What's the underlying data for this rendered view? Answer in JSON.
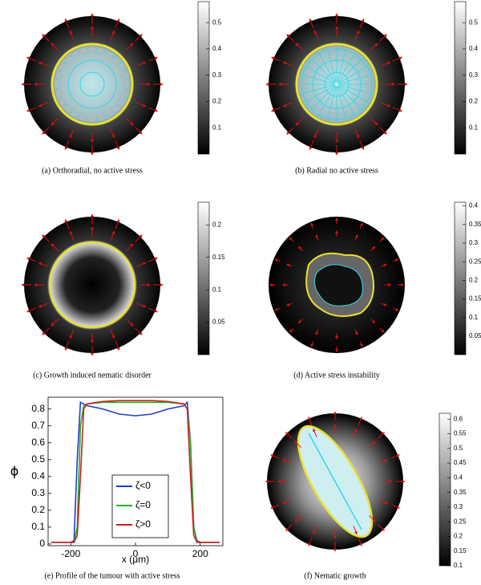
{
  "panels": [
    {
      "caption": "(a) Orthoradial, no active stress",
      "clim": [
        0,
        0.58
      ],
      "ticks": [
        0.1,
        0.2,
        0.3,
        0.4,
        0.5
      ]
    },
    {
      "caption": "(b) Radial no active stress",
      "clim": [
        0,
        0.58
      ],
      "ticks": [
        0.1,
        0.2,
        0.3,
        0.4,
        0.5
      ]
    },
    {
      "caption": "(c) Growth induced nematic disorder",
      "clim": [
        0,
        0.235
      ],
      "ticks": [
        0.05,
        0.1,
        0.15,
        0.2
      ]
    },
    {
      "caption": "(d) Active stress instability",
      "clim": [
        0,
        0.41
      ],
      "ticks": [
        0.05,
        0.1,
        0.15,
        0.2,
        0.25,
        0.3,
        0.35,
        0.4
      ]
    },
    {
      "caption": "(f) Nematic growth",
      "clim": [
        0.1,
        0.62
      ],
      "ticks": [
        0.1,
        0.15,
        0.2,
        0.25,
        0.3,
        0.35,
        0.4,
        0.45,
        0.5,
        0.55,
        0.6
      ]
    }
  ],
  "chart_data": {
    "type": "line",
    "caption": "(e) Profile of the tumour with active stress",
    "x_label": "x (μm)",
    "y_label": "ϕ",
    "x": [
      -260,
      -200,
      -190,
      -180,
      -170,
      -160,
      -150,
      -100,
      -50,
      0,
      50,
      100,
      150,
      160,
      170,
      180,
      190,
      200,
      260
    ],
    "series": [
      {
        "name": "ζ<0",
        "color": "#1f3fd0",
        "values": [
          0.01,
          0.01,
          0.02,
          0.5,
          0.84,
          0.83,
          0.82,
          0.8,
          0.77,
          0.76,
          0.77,
          0.8,
          0.82,
          0.84,
          0.6,
          0.1,
          0.02,
          0.01,
          0.01
        ]
      },
      {
        "name": "ζ=0",
        "color": "#22b022",
        "values": [
          0.01,
          0.01,
          0.01,
          0.1,
          0.7,
          0.82,
          0.83,
          0.84,
          0.84,
          0.84,
          0.84,
          0.84,
          0.83,
          0.8,
          0.6,
          0.1,
          0.01,
          0.01,
          0.01
        ]
      },
      {
        "name": "ζ>0",
        "color": "#d01f1f",
        "values": [
          0.01,
          0.01,
          0.01,
          0.05,
          0.4,
          0.8,
          0.83,
          0.845,
          0.85,
          0.85,
          0.85,
          0.845,
          0.83,
          0.8,
          0.4,
          0.05,
          0.01,
          0.01,
          0.01
        ]
      }
    ],
    "xlim": [
      -270,
      270
    ],
    "ylim": [
      -0.01,
      0.87
    ],
    "xticks": [
      -200,
      0,
      200
    ],
    "yticks": [
      0,
      0.1,
      0.2,
      0.3,
      0.4,
      0.5,
      0.6,
      0.7,
      0.8
    ]
  }
}
